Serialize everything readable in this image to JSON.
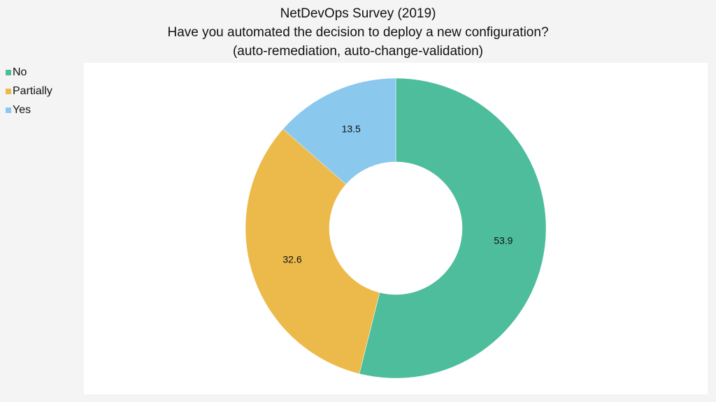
{
  "chart_data": {
    "type": "donut",
    "title": [
      "NetDevOps Survey (2019)",
      "Have you automated the decision to deploy a new configuration?",
      "(auto-remediation, auto-change-validation)"
    ],
    "categories": [
      "No",
      "Partially",
      "Yes"
    ],
    "values": [
      53.9,
      32.6,
      13.5
    ],
    "colors": [
      "#4dbd9c",
      "#ecba4b",
      "#8ac8ee"
    ],
    "legend": "top-left"
  }
}
